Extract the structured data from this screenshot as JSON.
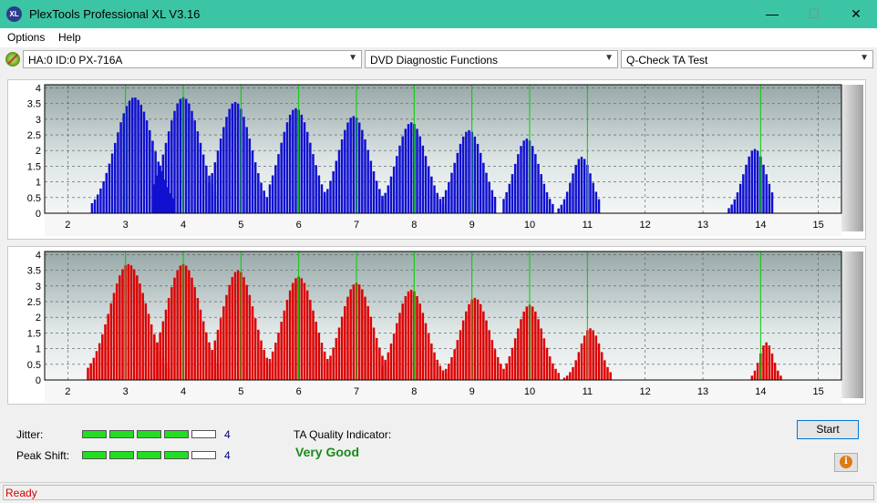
{
  "window": {
    "title": "PlexTools Professional XL V3.16",
    "icon": "XL",
    "minimize": "—",
    "maximize": "☐",
    "close": "✕"
  },
  "menu": {
    "options": "Options",
    "help": "Help"
  },
  "toolbar": {
    "drive": "HA:0 ID:0  PX-716A",
    "function": "DVD Diagnostic Functions",
    "test": "Q-Check TA Test"
  },
  "charts": {
    "x_ticks": [
      "2",
      "3",
      "4",
      "5",
      "6",
      "7",
      "8",
      "9",
      "10",
      "11",
      "12",
      "13",
      "14",
      "15"
    ],
    "y_ticks": [
      "0",
      "0.5",
      "1",
      "1.5",
      "2",
      "2.5",
      "3",
      "3.5",
      "4"
    ]
  },
  "chart_data": [
    {
      "type": "bar",
      "name": "upper",
      "color": "#1010d0",
      "xlim": [
        1.6,
        15.4
      ],
      "ylim": [
        0,
        4.1
      ],
      "green_lines": [
        3,
        4,
        5,
        6,
        7,
        8,
        9,
        10,
        11,
        14
      ],
      "peaks": [
        {
          "center": 3.15,
          "height": 3.7,
          "width": 0.33,
          "start": 2.42,
          "end": 3.85
        },
        {
          "center": 4.0,
          "height": 3.7,
          "width": 0.3,
          "start": 3.5,
          "end": 4.55
        },
        {
          "center": 4.9,
          "height": 3.55,
          "width": 0.28,
          "start": 4.45,
          "end": 5.45
        },
        {
          "center": 5.95,
          "height": 3.35,
          "width": 0.28,
          "start": 5.5,
          "end": 6.45
        },
        {
          "center": 6.95,
          "height": 3.1,
          "width": 0.27,
          "start": 6.45,
          "end": 7.45
        },
        {
          "center": 7.95,
          "height": 2.9,
          "width": 0.26,
          "start": 7.45,
          "end": 8.5
        },
        {
          "center": 8.95,
          "height": 2.65,
          "width": 0.25,
          "start": 8.5,
          "end": 9.4
        },
        {
          "center": 9.95,
          "height": 2.38,
          "width": 0.22,
          "start": 9.55,
          "end": 10.4
        },
        {
          "center": 10.9,
          "height": 1.8,
          "width": 0.18,
          "start": 10.5,
          "end": 11.2
        },
        {
          "center": 13.9,
          "height": 2.05,
          "width": 0.2,
          "start": 13.45,
          "end": 14.2
        }
      ]
    },
    {
      "type": "bar",
      "name": "lower",
      "color": "#dd0000",
      "xlim": [
        1.6,
        15.4
      ],
      "ylim": [
        0,
        4.1
      ],
      "green_lines": [
        3,
        4,
        5,
        6,
        7,
        8,
        9,
        10,
        11,
        14
      ],
      "peaks": [
        {
          "center": 3.05,
          "height": 3.7,
          "width": 0.33,
          "start": 2.35,
          "end": 3.75
        },
        {
          "center": 4.0,
          "height": 3.7,
          "width": 0.3,
          "start": 3.55,
          "end": 4.6
        },
        {
          "center": 4.95,
          "height": 3.5,
          "width": 0.28,
          "start": 4.5,
          "end": 5.5
        },
        {
          "center": 6.0,
          "height": 3.3,
          "width": 0.28,
          "start": 5.5,
          "end": 6.5
        },
        {
          "center": 7.0,
          "height": 3.1,
          "width": 0.27,
          "start": 6.5,
          "end": 7.55
        },
        {
          "center": 7.95,
          "height": 2.88,
          "width": 0.26,
          "start": 7.45,
          "end": 8.55
        },
        {
          "center": 9.05,
          "height": 2.62,
          "width": 0.25,
          "start": 8.55,
          "end": 9.55
        },
        {
          "center": 10.0,
          "height": 2.4,
          "width": 0.23,
          "start": 9.6,
          "end": 10.5
        },
        {
          "center": 11.05,
          "height": 1.65,
          "width": 0.18,
          "start": 10.6,
          "end": 11.4
        },
        {
          "center": 14.1,
          "height": 1.2,
          "width": 0.12,
          "start": 13.85,
          "end": 14.35
        }
      ]
    }
  ],
  "quality": {
    "jitter_label": "Jitter:",
    "peak_shift_label": "Peak Shift:",
    "jitter_value": "4",
    "peak_shift_value": "4",
    "jitter_level": 4,
    "peak_shift_level": 4,
    "max_level": 5,
    "ta_label": "TA Quality Indicator:",
    "ta_value": "Very Good"
  },
  "buttons": {
    "start": "Start",
    "info": "i"
  },
  "status": {
    "text": "Ready"
  }
}
